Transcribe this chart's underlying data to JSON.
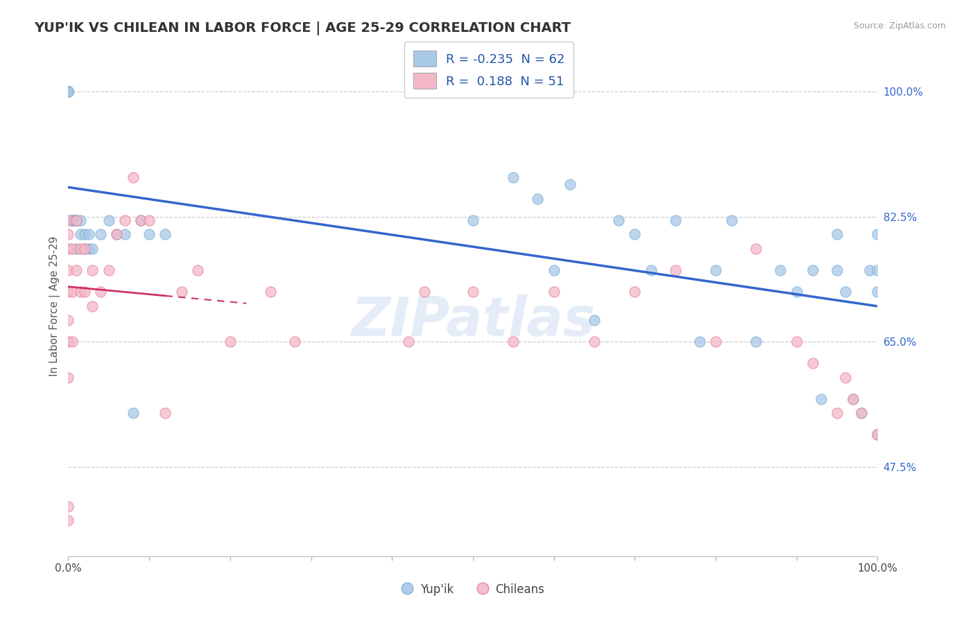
{
  "title": "YUP'IK VS CHILEAN IN LABOR FORCE | AGE 25-29 CORRELATION CHART",
  "source_text": "Source: ZipAtlas.com",
  "ylabel": "In Labor Force | Age 25-29",
  "xlim": [
    0.0,
    1.0
  ],
  "ylim": [
    0.35,
    1.05
  ],
  "y_tick_values": [
    1.0,
    0.825,
    0.65,
    0.475
  ],
  "y_tick_labels": [
    "100.0%",
    "82.5%",
    "65.0%",
    "47.5%"
  ],
  "watermark": "ZIPatlas",
  "legend_blue_r": "-0.235",
  "legend_blue_n": "62",
  "legend_pink_r": "0.188",
  "legend_pink_n": "51",
  "blue_color": "#a8c8e8",
  "blue_edge_color": "#7aafd4",
  "pink_color": "#f4b8c8",
  "pink_edge_color": "#e8809a",
  "blue_line_color": "#3366cc",
  "pink_line_color": "#cc3366",
  "background_color": "#ffffff",
  "grid_color": "#cccccc",
  "yupik_x": [
    0.0,
    0.0,
    0.0,
    0.0,
    0.0,
    0.0,
    0.0,
    0.0,
    0.0,
    0.0,
    0.005,
    0.005,
    0.005,
    0.005,
    0.008,
    0.008,
    0.01,
    0.01,
    0.01,
    0.015,
    0.015,
    0.02,
    0.02,
    0.025,
    0.025,
    0.03,
    0.04,
    0.05,
    0.06,
    0.07,
    0.08,
    0.09,
    0.1,
    0.12,
    0.5,
    0.55,
    0.58,
    0.6,
    0.62,
    0.65,
    0.68,
    0.7,
    0.72,
    0.75,
    0.78,
    0.8,
    0.82,
    0.85,
    0.88,
    0.9,
    0.92,
    0.93,
    0.95,
    0.95,
    0.96,
    0.97,
    0.98,
    0.99,
    1.0,
    1.0,
    1.0,
    1.0
  ],
  "yupik_y": [
    1.0,
    1.0,
    1.0,
    1.0,
    1.0,
    1.0,
    1.0,
    1.0,
    1.0,
    1.0,
    0.82,
    0.82,
    0.82,
    0.82,
    0.82,
    0.82,
    0.82,
    0.82,
    0.78,
    0.82,
    0.8,
    0.8,
    0.78,
    0.8,
    0.78,
    0.78,
    0.8,
    0.82,
    0.8,
    0.8,
    0.55,
    0.82,
    0.8,
    0.8,
    0.82,
    0.88,
    0.85,
    0.75,
    0.87,
    0.68,
    0.82,
    0.8,
    0.75,
    0.82,
    0.65,
    0.75,
    0.82,
    0.65,
    0.75,
    0.72,
    0.75,
    0.57,
    0.8,
    0.75,
    0.72,
    0.57,
    0.55,
    0.75,
    0.8,
    0.75,
    0.72,
    0.52
  ],
  "chilean_x": [
    0.0,
    0.0,
    0.0,
    0.0,
    0.0,
    0.0,
    0.0,
    0.0,
    0.0,
    0.0,
    0.005,
    0.005,
    0.005,
    0.01,
    0.01,
    0.015,
    0.015,
    0.02,
    0.02,
    0.03,
    0.03,
    0.04,
    0.05,
    0.06,
    0.07,
    0.08,
    0.09,
    0.1,
    0.12,
    0.14,
    0.16,
    0.2,
    0.25,
    0.28,
    0.42,
    0.44,
    0.5,
    0.55,
    0.6,
    0.65,
    0.7,
    0.75,
    0.8,
    0.85,
    0.9,
    0.92,
    0.95,
    0.96,
    0.97,
    0.98,
    1.0
  ],
  "chilean_y": [
    0.82,
    0.8,
    0.78,
    0.75,
    0.72,
    0.68,
    0.65,
    0.6,
    0.42,
    0.4,
    0.78,
    0.72,
    0.65,
    0.82,
    0.75,
    0.78,
    0.72,
    0.78,
    0.72,
    0.75,
    0.7,
    0.72,
    0.75,
    0.8,
    0.82,
    0.88,
    0.82,
    0.82,
    0.55,
    0.72,
    0.75,
    0.65,
    0.72,
    0.65,
    0.65,
    0.72,
    0.72,
    0.65,
    0.72,
    0.65,
    0.72,
    0.75,
    0.65,
    0.78,
    0.65,
    0.62,
    0.55,
    0.6,
    0.57,
    0.55,
    0.52
  ]
}
